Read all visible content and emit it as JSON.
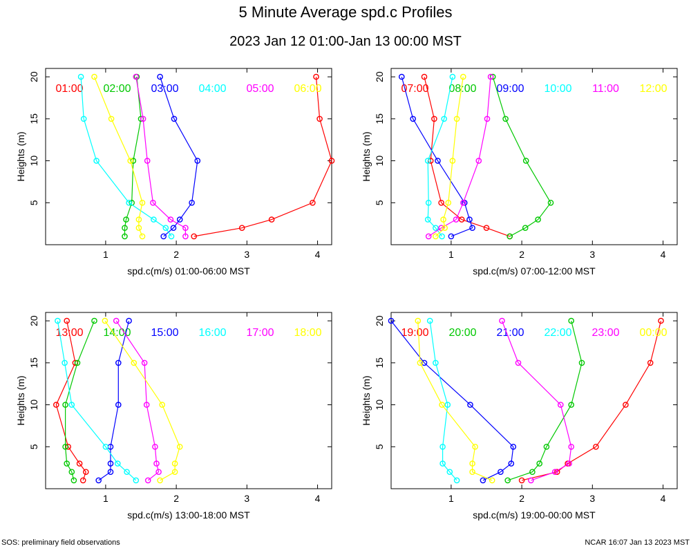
{
  "title": "5 Minute Average spd.c Profiles",
  "subtitle": "2023 Jan 12 01:00-Jan 13 00:00 MST",
  "footer": {
    "left": "SOS: preliminary field observations",
    "right": "NCAR 16:07 Jan 13 2023 MST"
  },
  "chart_data": [
    {
      "type": "line",
      "title": "",
      "xlabel": "spd.c(m/s) 01:00-06:00 MST",
      "ylabel": "Heights (m)",
      "xlim": [
        0.15,
        4.2
      ],
      "ylim": [
        0,
        21
      ],
      "xticks": [
        1,
        2,
        3,
        4
      ],
      "yticks": [
        5,
        10,
        15,
        20
      ],
      "heights": [
        1,
        2,
        3,
        5,
        10,
        15,
        20
      ],
      "series": [
        {
          "name": "01:00",
          "color": "#ff0000",
          "values": [
            2.25,
            2.93,
            3.35,
            3.93,
            4.2,
            4.03,
            3.98
          ]
        },
        {
          "name": "02:00",
          "color": "#00c800",
          "values": [
            1.27,
            1.27,
            1.29,
            1.37,
            1.39,
            1.5,
            1.44
          ]
        },
        {
          "name": "03:00",
          "color": "#0000ff",
          "values": [
            1.82,
            1.96,
            2.05,
            2.22,
            2.3,
            1.97,
            1.77
          ]
        },
        {
          "name": "04:00",
          "color": "#00ffff",
          "values": [
            1.93,
            1.85,
            1.68,
            1.33,
            0.87,
            0.69,
            0.65
          ]
        },
        {
          "name": "05:00",
          "color": "#ff00ff",
          "values": [
            2.13,
            2.13,
            1.92,
            1.67,
            1.59,
            1.53,
            1.43
          ]
        },
        {
          "name": "06:00",
          "color": "#ffff00",
          "values": [
            1.52,
            1.47,
            1.47,
            1.52,
            1.35,
            1.08,
            0.84
          ]
        }
      ]
    },
    {
      "type": "line",
      "title": "",
      "xlabel": "spd.c(m/s) 07:00-12:00 MST",
      "ylabel": "Heights (m)",
      "xlim": [
        0.15,
        4.2
      ],
      "ylim": [
        0,
        21
      ],
      "xticks": [
        1,
        2,
        3,
        4
      ],
      "yticks": [
        5,
        10,
        15,
        20
      ],
      "heights": [
        1,
        2,
        3,
        5,
        10,
        15,
        20
      ],
      "series": [
        {
          "name": "07:00",
          "color": "#ff0000",
          "values": [
            1.83,
            1.5,
            1.15,
            0.86,
            0.71,
            0.76,
            0.62
          ]
        },
        {
          "name": "08:00",
          "color": "#00c800",
          "values": [
            1.83,
            2.05,
            2.23,
            2.41,
            2.06,
            1.77,
            1.59
          ]
        },
        {
          "name": "09:00",
          "color": "#0000ff",
          "values": [
            1.0,
            1.3,
            1.26,
            1.19,
            0.81,
            0.46,
            0.3
          ]
        },
        {
          "name": "10:00",
          "color": "#00ffff",
          "values": [
            0.87,
            0.78,
            0.67,
            0.68,
            0.67,
            0.9,
            1.02
          ]
        },
        {
          "name": "11:00",
          "color": "#ff00ff",
          "values": [
            0.68,
            0.86,
            1.07,
            1.17,
            1.39,
            1.51,
            1.56
          ]
        },
        {
          "name": "12:00",
          "color": "#ffff00",
          "values": [
            0.78,
            0.91,
            0.89,
            0.96,
            1.02,
            1.08,
            1.17
          ]
        }
      ]
    },
    {
      "type": "line",
      "title": "",
      "xlabel": "spd.c(m/s) 13:00-18:00 MST",
      "ylabel": "Heights (m)",
      "xlim": [
        0.15,
        4.2
      ],
      "ylim": [
        0,
        21
      ],
      "xticks": [
        1,
        2,
        3,
        4
      ],
      "yticks": [
        5,
        10,
        15,
        20
      ],
      "heights": [
        1,
        2,
        3,
        5,
        10,
        15,
        20
      ],
      "series": [
        {
          "name": "13:00",
          "color": "#ff0000",
          "values": [
            0.68,
            0.72,
            0.63,
            0.47,
            0.3,
            0.57,
            0.45
          ]
        },
        {
          "name": "14:00",
          "color": "#00c800",
          "values": [
            0.55,
            0.52,
            0.45,
            0.43,
            0.43,
            0.6,
            0.84
          ]
        },
        {
          "name": "15:00",
          "color": "#0000ff",
          "values": [
            0.9,
            1.07,
            1.07,
            1.07,
            1.18,
            1.18,
            1.33
          ]
        },
        {
          "name": "16:00",
          "color": "#00ffff",
          "values": [
            1.43,
            1.3,
            1.17,
            1.0,
            0.52,
            0.42,
            0.32
          ]
        },
        {
          "name": "17:00",
          "color": "#ff00ff",
          "values": [
            1.6,
            1.75,
            1.72,
            1.7,
            1.58,
            1.55,
            1.15
          ]
        },
        {
          "name": "18:00",
          "color": "#ffff00",
          "values": [
            1.77,
            1.98,
            1.98,
            2.05,
            1.8,
            1.4,
            0.99
          ]
        }
      ]
    },
    {
      "type": "line",
      "title": "",
      "xlabel": "spd.c(m/s) 19:00-00:00 MST",
      "ylabel": "Heights (m)",
      "xlim": [
        0.15,
        4.2
      ],
      "ylim": [
        0,
        21
      ],
      "xticks": [
        1,
        2,
        3,
        4
      ],
      "yticks": [
        5,
        10,
        15,
        20
      ],
      "heights": [
        1,
        2,
        3,
        5,
        10,
        15,
        20
      ],
      "series": [
        {
          "name": "19:00",
          "color": "#ff0000",
          "values": [
            2.0,
            2.5,
            2.65,
            3.05,
            3.47,
            3.82,
            3.97
          ]
        },
        {
          "name": "20:00",
          "color": "#00c800",
          "values": [
            1.8,
            2.15,
            2.25,
            2.35,
            2.7,
            2.85,
            2.7
          ]
        },
        {
          "name": "21:00",
          "color": "#0000ff",
          "values": [
            1.45,
            1.7,
            1.85,
            1.88,
            1.27,
            0.62,
            0.15
          ]
        },
        {
          "name": "22:00",
          "color": "#00ffff",
          "values": [
            1.08,
            0.98,
            0.88,
            0.88,
            0.95,
            0.78,
            0.7
          ]
        },
        {
          "name": "23:00",
          "color": "#ff00ff",
          "values": [
            2.13,
            2.47,
            2.67,
            2.7,
            2.55,
            1.95,
            1.72
          ]
        },
        {
          "name": "00:00",
          "color": "#ffff00",
          "values": [
            1.58,
            1.3,
            1.3,
            1.34,
            0.87,
            0.56,
            0.53
          ]
        }
      ]
    }
  ]
}
